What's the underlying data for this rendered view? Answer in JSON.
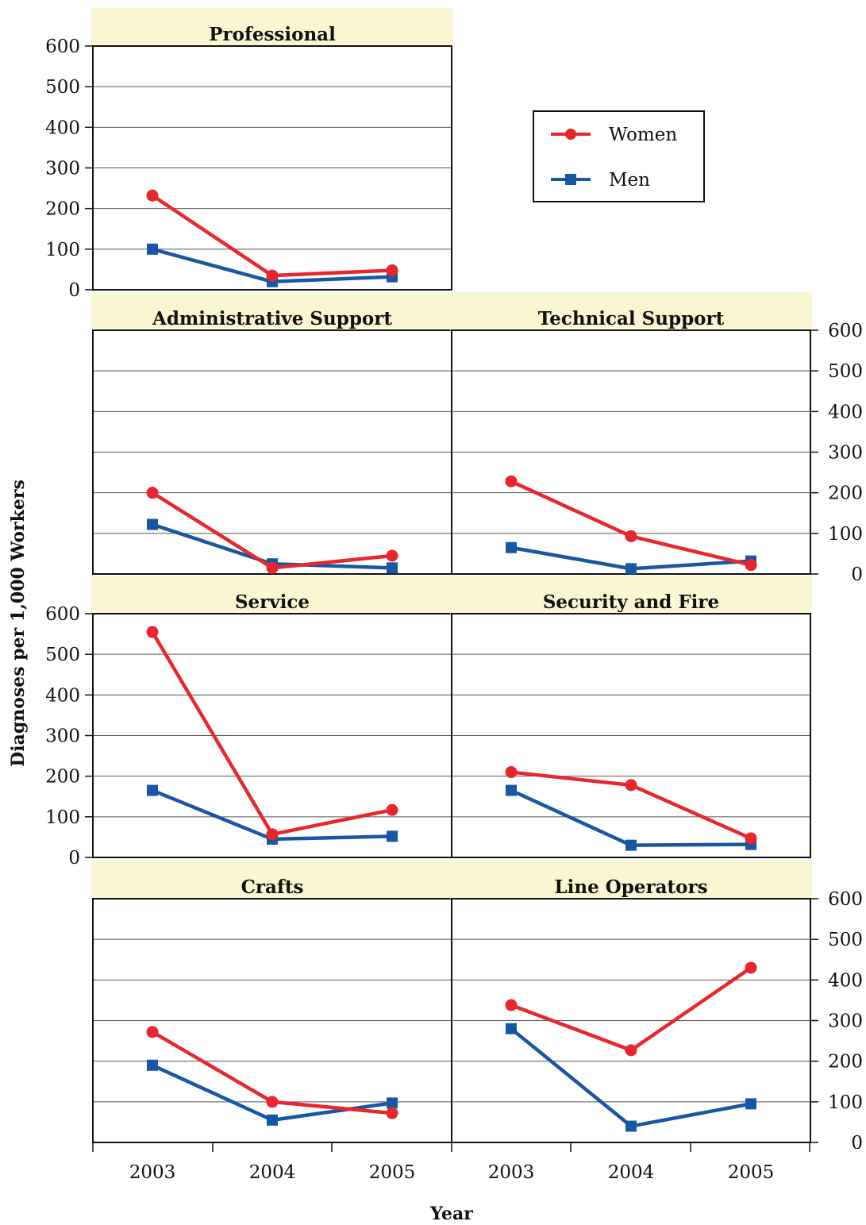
{
  "chart_data": {
    "type": "line",
    "ylabel": "Diagnoses per 1,000 Workers",
    "xlabel": "Year",
    "ylim": [
      0,
      600
    ],
    "yticks": [
      0,
      100,
      200,
      300,
      400,
      500,
      600
    ],
    "x": [
      "2003",
      "2004",
      "2005"
    ],
    "grid": true,
    "legend": {
      "placement": "top-right",
      "entries": [
        {
          "name": "Women",
          "color": "#e8262d",
          "marker": "circle"
        },
        {
          "name": "Men",
          "color": "#1857a4",
          "marker": "square"
        }
      ]
    },
    "panels": [
      {
        "title": "Professional",
        "series": [
          {
            "name": "Women",
            "values": [
              232,
              35,
              48
            ]
          },
          {
            "name": "Men",
            "values": [
              100,
              20,
              32
            ]
          }
        ]
      },
      {
        "title": "Administrative Support",
        "series": [
          {
            "name": "Women",
            "values": [
              200,
              15,
              45
            ]
          },
          {
            "name": "Men",
            "values": [
              122,
              25,
              15
            ]
          }
        ]
      },
      {
        "title": "Technical Support",
        "series": [
          {
            "name": "Women",
            "values": [
              228,
              93,
              22
            ]
          },
          {
            "name": "Men",
            "values": [
              65,
              13,
              32
            ]
          }
        ]
      },
      {
        "title": "Service",
        "series": [
          {
            "name": "Women",
            "values": [
              555,
              57,
              117
            ]
          },
          {
            "name": "Men",
            "values": [
              165,
              45,
              52
            ]
          }
        ]
      },
      {
        "title": "Security and Fire",
        "series": [
          {
            "name": "Women",
            "values": [
              210,
              178,
              47
            ]
          },
          {
            "name": "Men",
            "values": [
              165,
              30,
              32
            ]
          }
        ]
      },
      {
        "title": "Crafts",
        "series": [
          {
            "name": "Women",
            "values": [
              272,
              100,
              72
            ]
          },
          {
            "name": "Men",
            "values": [
              190,
              55,
              97
            ]
          }
        ]
      },
      {
        "title": "Line Operators",
        "series": [
          {
            "name": "Women",
            "values": [
              338,
              227,
              430
            ]
          },
          {
            "name": "Men",
            "values": [
              280,
              40,
              95
            ]
          }
        ]
      }
    ]
  }
}
